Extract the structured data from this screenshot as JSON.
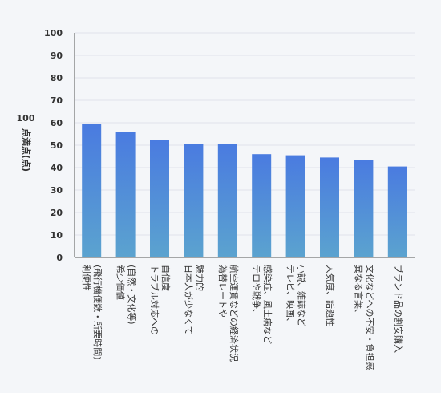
{
  "chart_data": {
    "type": "bar",
    "ylabel_lines": [
      "100",
      "点満点",
      "(点)"
    ],
    "ylim": [
      0,
      100
    ],
    "yticks": [
      0,
      10,
      20,
      30,
      40,
      50,
      60,
      70,
      80,
      90,
      100
    ],
    "grid": true,
    "categories": [
      [
        "利便性",
        "(飛行機便数・所要時間)"
      ],
      [
        "希少価値",
        "(自然・文化等)"
      ],
      [
        "トラブル対応への",
        "自信度"
      ],
      [
        "日本人が少なくて",
        "魅力的"
      ],
      [
        "為替レートや",
        "航空運賃などの経済状況"
      ],
      [
        "テロや戦争、",
        "感染症、風土病など"
      ],
      [
        "テレビ、映画、",
        "小説、雑誌など"
      ],
      [
        "人気度、話題性"
      ],
      [
        "異なる言葉、",
        "文化などへの不安・負担感"
      ],
      [
        "ブランド品の割安購入"
      ]
    ],
    "values": [
      59.5,
      56,
      52.5,
      50.5,
      50.5,
      46,
      45.5,
      44.5,
      43.5,
      40.5
    ],
    "colors": {
      "bar_top": "#4a7be0",
      "bar_bottom": "#5ba3cf",
      "grid": "#dfe3ea",
      "axis": "#555555"
    }
  }
}
